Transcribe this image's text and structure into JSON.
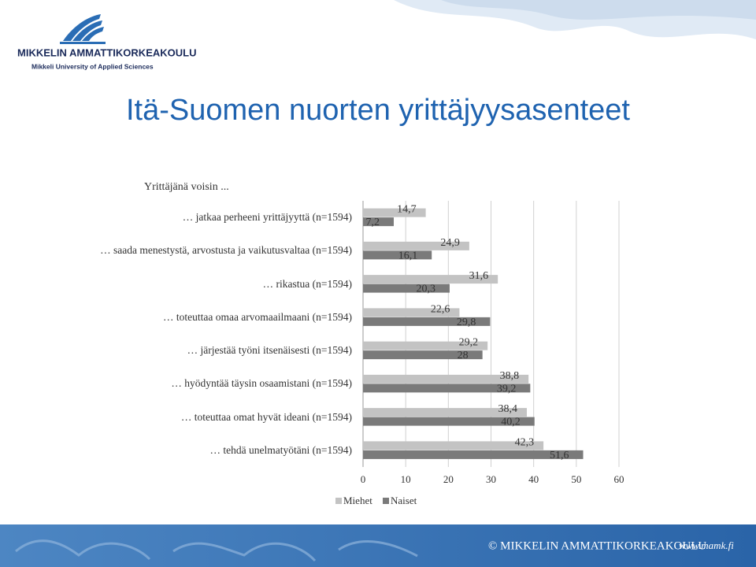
{
  "slide": {
    "title": "Itä-Suomen nuorten yrittäjyysasenteet",
    "logo_name": "MIKKELIN AMMATTIKORKEAKOULU",
    "logo_subtitle": "Mikkeli University of Applied Sciences",
    "footer": "© MIKKELIN AMMATTIKORKEAKOULU",
    "footer_url": "www.mamk.fi"
  },
  "chart_data": {
    "type": "hbar",
    "title": "Yrittäjänä voisin ...",
    "categories": [
      "… jatkaa perheeni yrittäjyyttä (n=1594)",
      "… saada menestystä, arvostusta ja vaikutusvaltaa (n=1594)",
      "… rikastua (n=1594)",
      "… toteuttaa omaa arvomaailmaani (n=1594)",
      "… järjestää työni itsenäisesti (n=1594)",
      "… hyödyntää täysin osaamistani (n=1594)",
      "… toteuttaa omat hyvät ideani (n=1594)",
      "… tehdä unelmatyötäni (n=1594)"
    ],
    "series": [
      {
        "name": "Miehet",
        "color": "#c3c3c3",
        "values": [
          14.7,
          24.9,
          31.6,
          22.6,
          29.2,
          38.8,
          38.4,
          42.3
        ],
        "value_labels": [
          "14,7",
          "24,9",
          "31,6",
          "22,6",
          "29,2",
          "38,8",
          "38,4",
          "42,3"
        ]
      },
      {
        "name": "Naiset",
        "color": "#7a7a7a",
        "values": [
          7.2,
          16.1,
          20.3,
          29.8,
          28,
          39.2,
          40.2,
          51.6
        ],
        "value_labels": [
          "7,2",
          "16,1",
          "20,3",
          "29,8",
          "28",
          "39,2",
          "40,2",
          "51,6"
        ]
      }
    ],
    "xlim": [
      0,
      60
    ],
    "xticks": [
      0,
      10,
      20,
      30,
      40,
      50,
      60
    ],
    "grid": true,
    "legend": "bottom"
  }
}
